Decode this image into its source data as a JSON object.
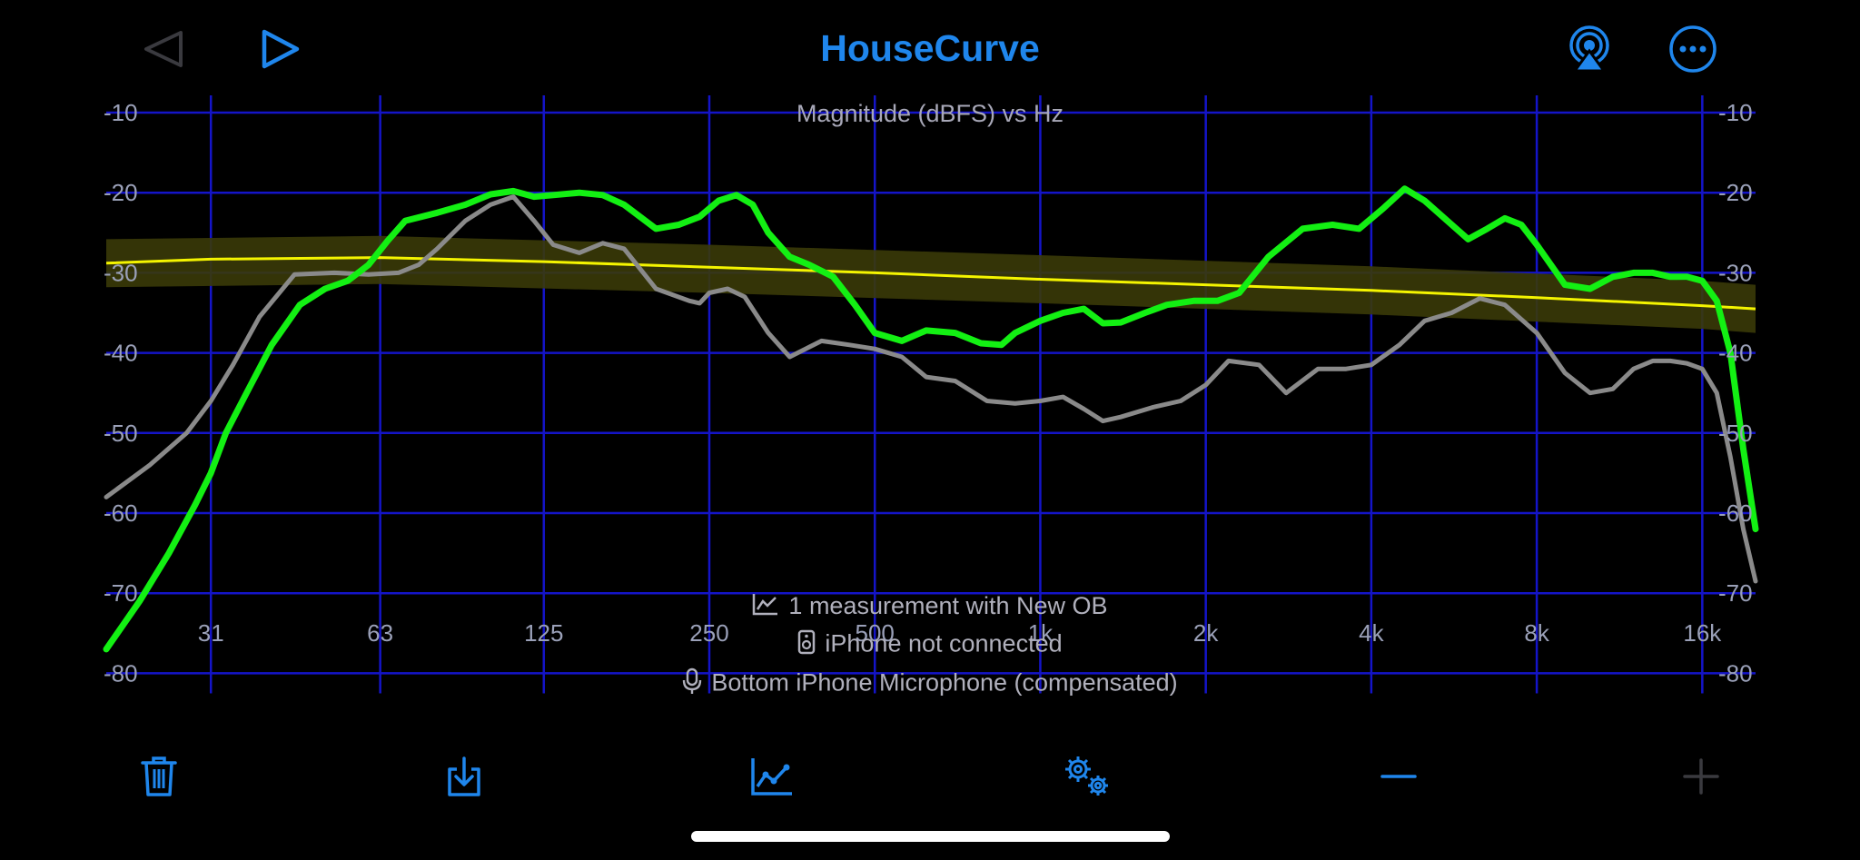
{
  "app": {
    "title": "HouseCurve"
  },
  "toolbar": {
    "back_icon": "back-triangle-icon",
    "play_icon": "play-icon",
    "airplay_icon": "airplay-icon",
    "more_icon": "more-ellipsis-icon"
  },
  "status": {
    "measurement": "1 measurement with New OB",
    "device": "iPhone not connected",
    "microphone": "Bottom iPhone Microphone (compensated)"
  },
  "bottom_toolbar": [
    "trash-icon",
    "download-icon",
    "chart-icon",
    "settings-gears-icon",
    "minus-icon",
    "plus-icon"
  ],
  "colors": {
    "accent": "#1f86ec",
    "grid": "#1414c8",
    "measured": "#13f013",
    "raw": "#8a8a8a",
    "target": "#f4f400",
    "target_band": "#3a3a08"
  },
  "chart_data": {
    "type": "line",
    "title": "Magnitude (dBFS) vs Hz",
    "x_scale": "log",
    "xlim": [
      20,
      20000
    ],
    "ylim": [
      -84,
      -8
    ],
    "x_ticks": [
      31,
      63,
      125,
      250,
      500,
      1000,
      2000,
      4000,
      8000,
      16000
    ],
    "x_tick_labels": [
      "31",
      "63",
      "125",
      "250",
      "500",
      "1k",
      "2k",
      "4k",
      "8k",
      "16k"
    ],
    "y_ticks": [
      -10,
      -20,
      -30,
      -40,
      -50,
      -60,
      -70,
      -80
    ],
    "y_tick_labels": [
      "-10",
      "-20",
      "-30",
      "-40",
      "-50",
      "-60",
      "-70",
      "-80"
    ],
    "grid": true,
    "series": [
      {
        "role": "target-band",
        "x": [
          20,
          63,
          250,
          1000,
          4000,
          16000,
          20000
        ],
        "upper": [
          -25.8,
          -25.4,
          -26.5,
          -27.8,
          -29.2,
          -31,
          -31.5
        ],
        "lower": [
          -31.8,
          -31.4,
          -32.5,
          -33.8,
          -35.2,
          -37,
          -37.5
        ]
      },
      {
        "role": "target",
        "x": [
          20,
          31,
          63,
          125,
          250,
          500,
          1000,
          2000,
          4000,
          8000,
          16000,
          20000
        ],
        "y": [
          -28.8,
          -28.3,
          -28.1,
          -28.6,
          -29.3,
          -30,
          -30.8,
          -31.5,
          -32.2,
          -33.1,
          -34.1,
          -34.5
        ]
      },
      {
        "role": "raw",
        "x": [
          20,
          24,
          28,
          31,
          34,
          38,
          44,
          52,
          60,
          68,
          74,
          80,
          90,
          100,
          110,
          120,
          130,
          145,
          160,
          175,
          200,
          230,
          240,
          250,
          270,
          290,
          320,
          350,
          400,
          450,
          500,
          560,
          620,
          700,
          800,
          900,
          1000,
          1100,
          1200,
          1300,
          1400,
          1600,
          1800,
          2000,
          2200,
          2500,
          2800,
          3200,
          3600,
          4000,
          4500,
          5000,
          5600,
          6300,
          7000,
          8000,
          9000,
          10000,
          11000,
          12000,
          13000,
          14000,
          15000,
          16000,
          17000,
          18000,
          19000,
          20000
        ],
        "y": [
          -58,
          -54,
          -50,
          -46,
          -41.5,
          -35.5,
          -30.2,
          -30,
          -30.2,
          -30,
          -29,
          -27,
          -23.5,
          -21.5,
          -20.5,
          -23.5,
          -26.5,
          -27.5,
          -26.3,
          -27,
          -32,
          -33.5,
          -33.8,
          -32.5,
          -32,
          -33,
          -37.5,
          -40.5,
          -38.5,
          -39,
          -39.5,
          -40.5,
          -43,
          -43.5,
          -46,
          -46.3,
          -46,
          -45.5,
          -47,
          -48.5,
          -48,
          -46.8,
          -46,
          -44,
          -41,
          -41.5,
          -45,
          -42,
          -42,
          -41.5,
          -39,
          -36,
          -35,
          -33.2,
          -34,
          -37.5,
          -42.5,
          -45,
          -44.5,
          -42,
          -41,
          -41,
          -41.3,
          -42,
          -45,
          -53,
          -62,
          -68.5
        ]
      },
      {
        "role": "measured",
        "x": [
          20,
          23,
          26,
          29,
          31,
          33,
          36,
          40,
          45,
          50,
          55,
          60,
          65,
          70,
          80,
          90,
          100,
          110,
          120,
          130,
          145,
          160,
          175,
          200,
          220,
          240,
          260,
          280,
          300,
          320,
          350,
          380,
          420,
          460,
          500,
          560,
          620,
          700,
          780,
          850,
          900,
          1000,
          1100,
          1200,
          1300,
          1400,
          1550,
          1700,
          1900,
          2100,
          2300,
          2600,
          3000,
          3400,
          3800,
          4200,
          4600,
          5000,
          5500,
          6000,
          6500,
          7000,
          7500,
          8000,
          9000,
          10000,
          11000,
          12000,
          13000,
          14000,
          15000,
          16000,
          17000,
          18000,
          19000,
          20000
        ],
        "y": [
          -77,
          -71,
          -65,
          -59,
          -55,
          -50,
          -45,
          -39,
          -34,
          -32,
          -31,
          -29,
          -26,
          -23.5,
          -22.5,
          -21.5,
          -20.2,
          -19.8,
          -20.5,
          -20.3,
          -20,
          -20.3,
          -21.5,
          -24.5,
          -24,
          -23,
          -21,
          -20.3,
          -21.5,
          -25,
          -28,
          -29,
          -30.5,
          -34,
          -37.5,
          -38.5,
          -37.2,
          -37.5,
          -38.8,
          -39,
          -37.5,
          -36,
          -35,
          -34.5,
          -36.3,
          -36.2,
          -35,
          -34,
          -33.5,
          -33.5,
          -32.5,
          -28,
          -24.5,
          -24,
          -24.5,
          -22,
          -19.5,
          -21,
          -23.5,
          -25.8,
          -24.5,
          -23.2,
          -24,
          -26.5,
          -31.5,
          -32,
          -30.5,
          -30,
          -30,
          -30.5,
          -30.5,
          -31,
          -33.5,
          -40,
          -52,
          -62
        ]
      }
    ]
  }
}
